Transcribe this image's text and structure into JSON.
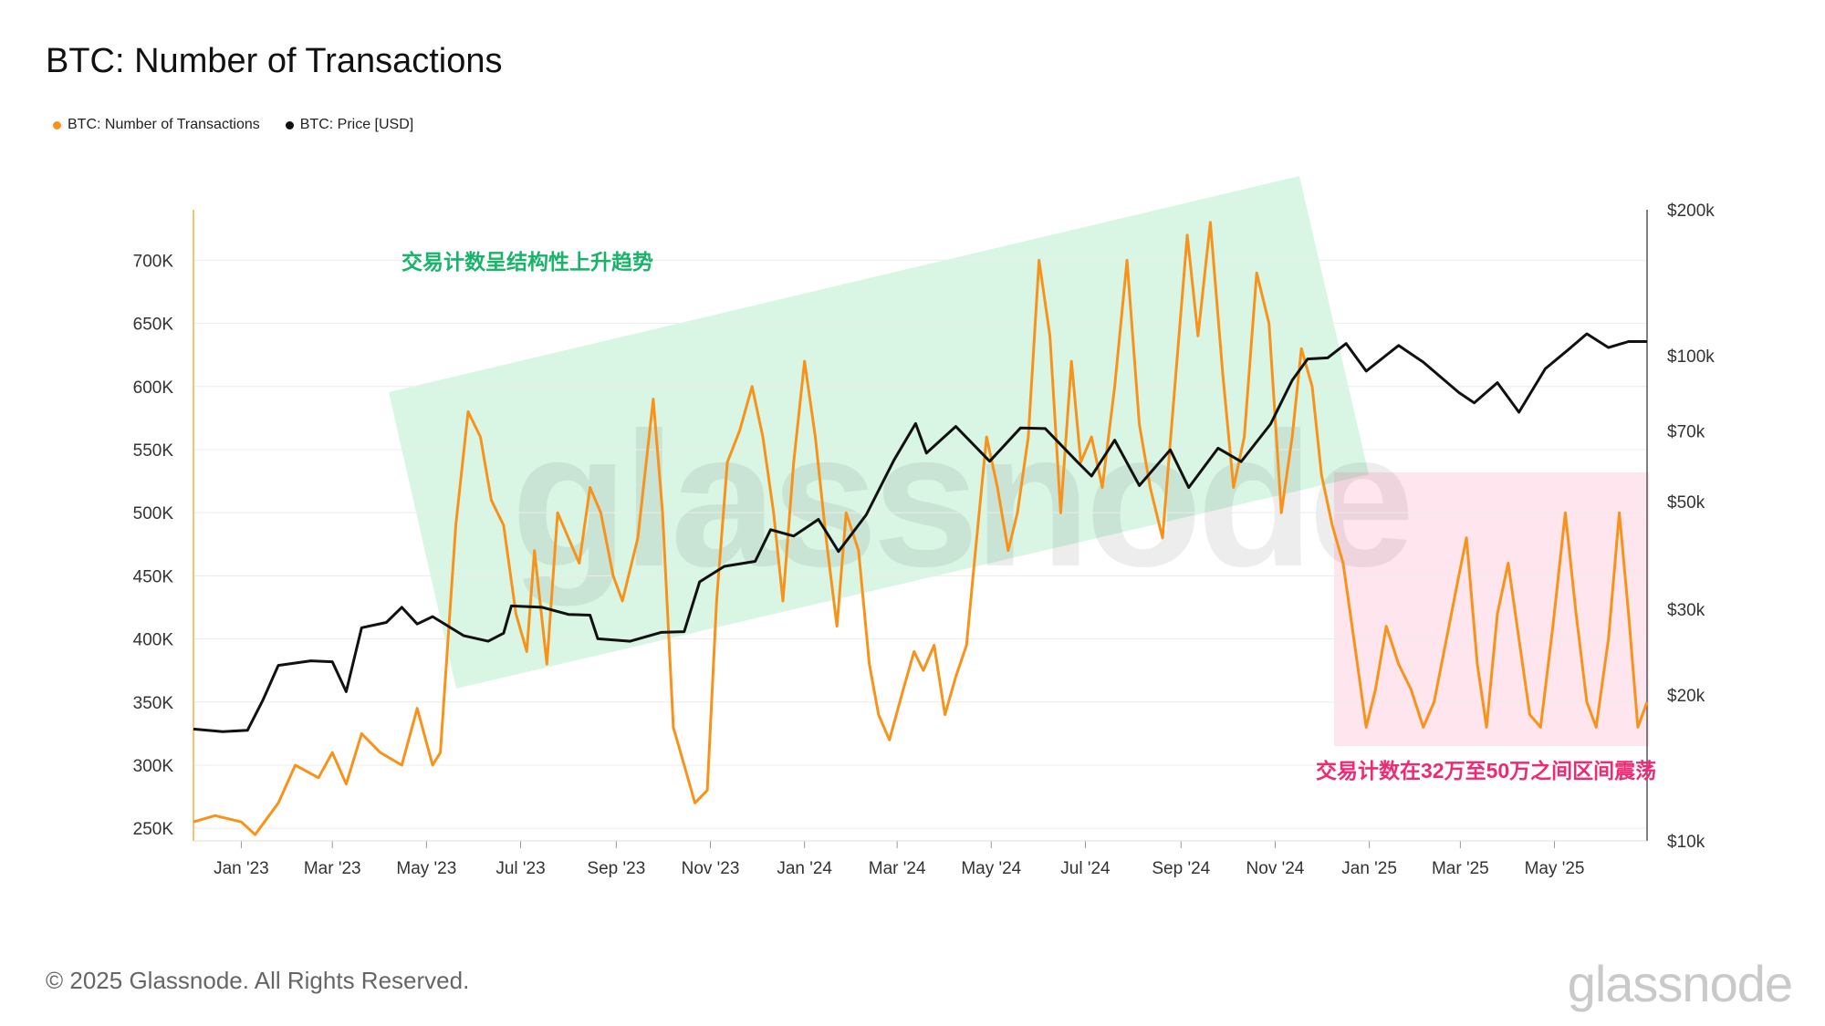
{
  "header": {
    "title": "BTC: Number of Transactions"
  },
  "legend": {
    "items": [
      {
        "label": "BTC: Number of Transactions",
        "color": "#F7931A"
      },
      {
        "label": "BTC: Price [USD]",
        "color": "#111111"
      }
    ]
  },
  "annotations": {
    "uptrend": "交易计数呈结构性上升趋势",
    "range": "交易计数在32万至50万之间区间震荡"
  },
  "watermark": "glassnode",
  "footer": {
    "copyright": "© 2025 Glassnode. All Rights Reserved.",
    "logo": "glassnode"
  },
  "chart_data": {
    "type": "line",
    "x_range": [
      "2022-12-01",
      "2025-06-30"
    ],
    "x_ticks": [
      "Jan '23",
      "Mar '23",
      "May '23",
      "Jul '23",
      "Sep '23",
      "Nov '23",
      "Jan '24",
      "Mar '24",
      "May '24",
      "Jul '24",
      "Sep '24",
      "Nov '24",
      "Jan '25",
      "Mar '25",
      "May '25"
    ],
    "y_left": {
      "ticks": [
        "250K",
        "300K",
        "350K",
        "400K",
        "450K",
        "500K",
        "550K",
        "600K",
        "650K",
        "700K"
      ],
      "range": [
        240000,
        740000
      ]
    },
    "y_right": {
      "scale": "log",
      "ticks": [
        "$10k",
        "$20k",
        "$30k",
        "$50k",
        "$70k",
        "$100k",
        "$200k"
      ],
      "tick_values": [
        10000,
        20000,
        30000,
        50000,
        70000,
        100000,
        200000
      ],
      "range": [
        10000,
        200000
      ]
    },
    "grid": "horizontal",
    "legend_position": "top-left",
    "series": [
      {
        "name": "BTC: Number of Transactions",
        "axis": "left",
        "color": "#F7931A",
        "points": [
          [
            "2022-12-01",
            255000
          ],
          [
            "2022-12-15",
            260000
          ],
          [
            "2023-01-01",
            255000
          ],
          [
            "2023-01-10",
            245000
          ],
          [
            "2023-01-25",
            270000
          ],
          [
            "2023-02-05",
            300000
          ],
          [
            "2023-02-20",
            290000
          ],
          [
            "2023-03-01",
            310000
          ],
          [
            "2023-03-10",
            285000
          ],
          [
            "2023-03-20",
            325000
          ],
          [
            "2023-04-01",
            310000
          ],
          [
            "2023-04-15",
            300000
          ],
          [
            "2023-04-25",
            345000
          ],
          [
            "2023-05-05",
            300000
          ],
          [
            "2023-05-10",
            310000
          ],
          [
            "2023-05-20",
            490000
          ],
          [
            "2023-05-28",
            580000
          ],
          [
            "2023-06-05",
            560000
          ],
          [
            "2023-06-12",
            510000
          ],
          [
            "2023-06-20",
            490000
          ],
          [
            "2023-06-28",
            420000
          ],
          [
            "2023-07-05",
            390000
          ],
          [
            "2023-07-10",
            470000
          ],
          [
            "2023-07-18",
            380000
          ],
          [
            "2023-07-25",
            500000
          ],
          [
            "2023-08-01",
            480000
          ],
          [
            "2023-08-08",
            460000
          ],
          [
            "2023-08-15",
            520000
          ],
          [
            "2023-08-22",
            500000
          ],
          [
            "2023-08-30",
            450000
          ],
          [
            "2023-09-05",
            430000
          ],
          [
            "2023-09-15",
            480000
          ],
          [
            "2023-09-25",
            590000
          ],
          [
            "2023-10-01",
            500000
          ],
          [
            "2023-10-08",
            330000
          ],
          [
            "2023-10-15",
            300000
          ],
          [
            "2023-10-22",
            270000
          ],
          [
            "2023-10-30",
            280000
          ],
          [
            "2023-11-05",
            430000
          ],
          [
            "2023-11-12",
            540000
          ],
          [
            "2023-11-20",
            565000
          ],
          [
            "2023-11-28",
            600000
          ],
          [
            "2023-12-05",
            560000
          ],
          [
            "2023-12-12",
            500000
          ],
          [
            "2023-12-18",
            430000
          ],
          [
            "2023-12-25",
            540000
          ],
          [
            "2024-01-01",
            620000
          ],
          [
            "2024-01-08",
            560000
          ],
          [
            "2024-01-15",
            480000
          ],
          [
            "2024-01-22",
            410000
          ],
          [
            "2024-01-28",
            500000
          ],
          [
            "2024-02-05",
            470000
          ],
          [
            "2024-02-12",
            380000
          ],
          [
            "2024-02-18",
            340000
          ],
          [
            "2024-02-25",
            320000
          ],
          [
            "2024-03-05",
            360000
          ],
          [
            "2024-03-12",
            390000
          ],
          [
            "2024-03-18",
            375000
          ],
          [
            "2024-03-25",
            395000
          ],
          [
            "2024-04-01",
            340000
          ],
          [
            "2024-04-08",
            370000
          ],
          [
            "2024-04-15",
            395000
          ],
          [
            "2024-04-20",
            460000
          ],
          [
            "2024-04-28",
            560000
          ],
          [
            "2024-05-05",
            520000
          ],
          [
            "2024-05-12",
            470000
          ],
          [
            "2024-05-18",
            500000
          ],
          [
            "2024-05-25",
            560000
          ],
          [
            "2024-06-01",
            700000
          ],
          [
            "2024-06-08",
            640000
          ],
          [
            "2024-06-15",
            500000
          ],
          [
            "2024-06-22",
            620000
          ],
          [
            "2024-06-28",
            540000
          ],
          [
            "2024-07-05",
            560000
          ],
          [
            "2024-07-12",
            520000
          ],
          [
            "2024-07-20",
            600000
          ],
          [
            "2024-07-28",
            700000
          ],
          [
            "2024-08-05",
            570000
          ],
          [
            "2024-08-12",
            520000
          ],
          [
            "2024-08-20",
            480000
          ],
          [
            "2024-08-28",
            600000
          ],
          [
            "2024-09-05",
            720000
          ],
          [
            "2024-09-12",
            640000
          ],
          [
            "2024-09-20",
            730000
          ],
          [
            "2024-09-28",
            610000
          ],
          [
            "2024-10-05",
            520000
          ],
          [
            "2024-10-12",
            560000
          ],
          [
            "2024-10-20",
            690000
          ],
          [
            "2024-10-28",
            650000
          ],
          [
            "2024-11-05",
            500000
          ],
          [
            "2024-11-12",
            560000
          ],
          [
            "2024-11-18",
            630000
          ],
          [
            "2024-11-25",
            600000
          ],
          [
            "2024-12-01",
            530000
          ],
          [
            "2024-12-08",
            490000
          ],
          [
            "2024-12-15",
            460000
          ],
          [
            "2024-12-22",
            400000
          ],
          [
            "2024-12-30",
            330000
          ],
          [
            "2025-01-05",
            360000
          ],
          [
            "2025-01-12",
            410000
          ],
          [
            "2025-01-20",
            380000
          ],
          [
            "2025-01-28",
            360000
          ],
          [
            "2025-02-05",
            330000
          ],
          [
            "2025-02-12",
            350000
          ],
          [
            "2025-02-20",
            400000
          ],
          [
            "2025-02-28",
            450000
          ],
          [
            "2025-03-05",
            480000
          ],
          [
            "2025-03-12",
            380000
          ],
          [
            "2025-03-18",
            330000
          ],
          [
            "2025-03-25",
            420000
          ],
          [
            "2025-04-01",
            460000
          ],
          [
            "2025-04-08",
            400000
          ],
          [
            "2025-04-15",
            340000
          ],
          [
            "2025-04-22",
            330000
          ],
          [
            "2025-04-30",
            410000
          ],
          [
            "2025-05-08",
            500000
          ],
          [
            "2025-05-15",
            420000
          ],
          [
            "2025-05-22",
            350000
          ],
          [
            "2025-05-28",
            330000
          ],
          [
            "2025-06-05",
            400000
          ],
          [
            "2025-06-12",
            500000
          ],
          [
            "2025-06-18",
            420000
          ],
          [
            "2025-06-24",
            330000
          ],
          [
            "2025-06-30",
            350000
          ]
        ]
      },
      {
        "name": "BTC: Price [USD]",
        "axis": "right",
        "color": "#111111",
        "points": [
          [
            "2022-12-01",
            17000
          ],
          [
            "2022-12-20",
            16800
          ],
          [
            "2023-01-05",
            16900
          ],
          [
            "2023-01-15",
            19500
          ],
          [
            "2023-01-25",
            23000
          ],
          [
            "2023-02-15",
            23500
          ],
          [
            "2023-03-01",
            23400
          ],
          [
            "2023-03-10",
            20300
          ],
          [
            "2023-03-20",
            27500
          ],
          [
            "2023-04-05",
            28200
          ],
          [
            "2023-04-15",
            30300
          ],
          [
            "2023-04-25",
            28000
          ],
          [
            "2023-05-05",
            29000
          ],
          [
            "2023-05-25",
            26500
          ],
          [
            "2023-06-10",
            25800
          ],
          [
            "2023-06-20",
            26800
          ],
          [
            "2023-06-25",
            30500
          ],
          [
            "2023-07-15",
            30300
          ],
          [
            "2023-08-01",
            29300
          ],
          [
            "2023-08-15",
            29200
          ],
          [
            "2023-08-20",
            26100
          ],
          [
            "2023-09-10",
            25800
          ],
          [
            "2023-09-30",
            26900
          ],
          [
            "2023-10-15",
            27000
          ],
          [
            "2023-10-25",
            34200
          ],
          [
            "2023-11-10",
            36800
          ],
          [
            "2023-11-30",
            37700
          ],
          [
            "2023-12-10",
            43800
          ],
          [
            "2023-12-25",
            42500
          ],
          [
            "2024-01-10",
            46000
          ],
          [
            "2024-01-23",
            39500
          ],
          [
            "2024-02-10",
            47000
          ],
          [
            "2024-02-28",
            61000
          ],
          [
            "2024-03-13",
            72500
          ],
          [
            "2024-03-20",
            63000
          ],
          [
            "2024-04-08",
            71500
          ],
          [
            "2024-04-30",
            60600
          ],
          [
            "2024-05-20",
            71000
          ],
          [
            "2024-06-05",
            70800
          ],
          [
            "2024-06-25",
            60800
          ],
          [
            "2024-07-05",
            56500
          ],
          [
            "2024-07-20",
            67000
          ],
          [
            "2024-08-05",
            54000
          ],
          [
            "2024-08-25",
            64000
          ],
          [
            "2024-09-06",
            53500
          ],
          [
            "2024-09-25",
            64500
          ],
          [
            "2024-10-10",
            60500
          ],
          [
            "2024-10-29",
            72300
          ],
          [
            "2024-11-12",
            89000
          ],
          [
            "2024-11-22",
            98500
          ],
          [
            "2024-12-05",
            99000
          ],
          [
            "2024-12-17",
            106000
          ],
          [
            "2024-12-30",
            93000
          ],
          [
            "2025-01-20",
            105000
          ],
          [
            "2025-02-05",
            97000
          ],
          [
            "2025-02-28",
            84000
          ],
          [
            "2025-03-10",
            80000
          ],
          [
            "2025-03-25",
            88000
          ],
          [
            "2025-04-08",
            76500
          ],
          [
            "2025-04-25",
            94000
          ],
          [
            "2025-05-10",
            103000
          ],
          [
            "2025-05-22",
            111000
          ],
          [
            "2025-06-05",
            104000
          ],
          [
            "2025-06-18",
            107000
          ],
          [
            "2025-06-30",
            107000
          ]
        ]
      }
    ]
  }
}
